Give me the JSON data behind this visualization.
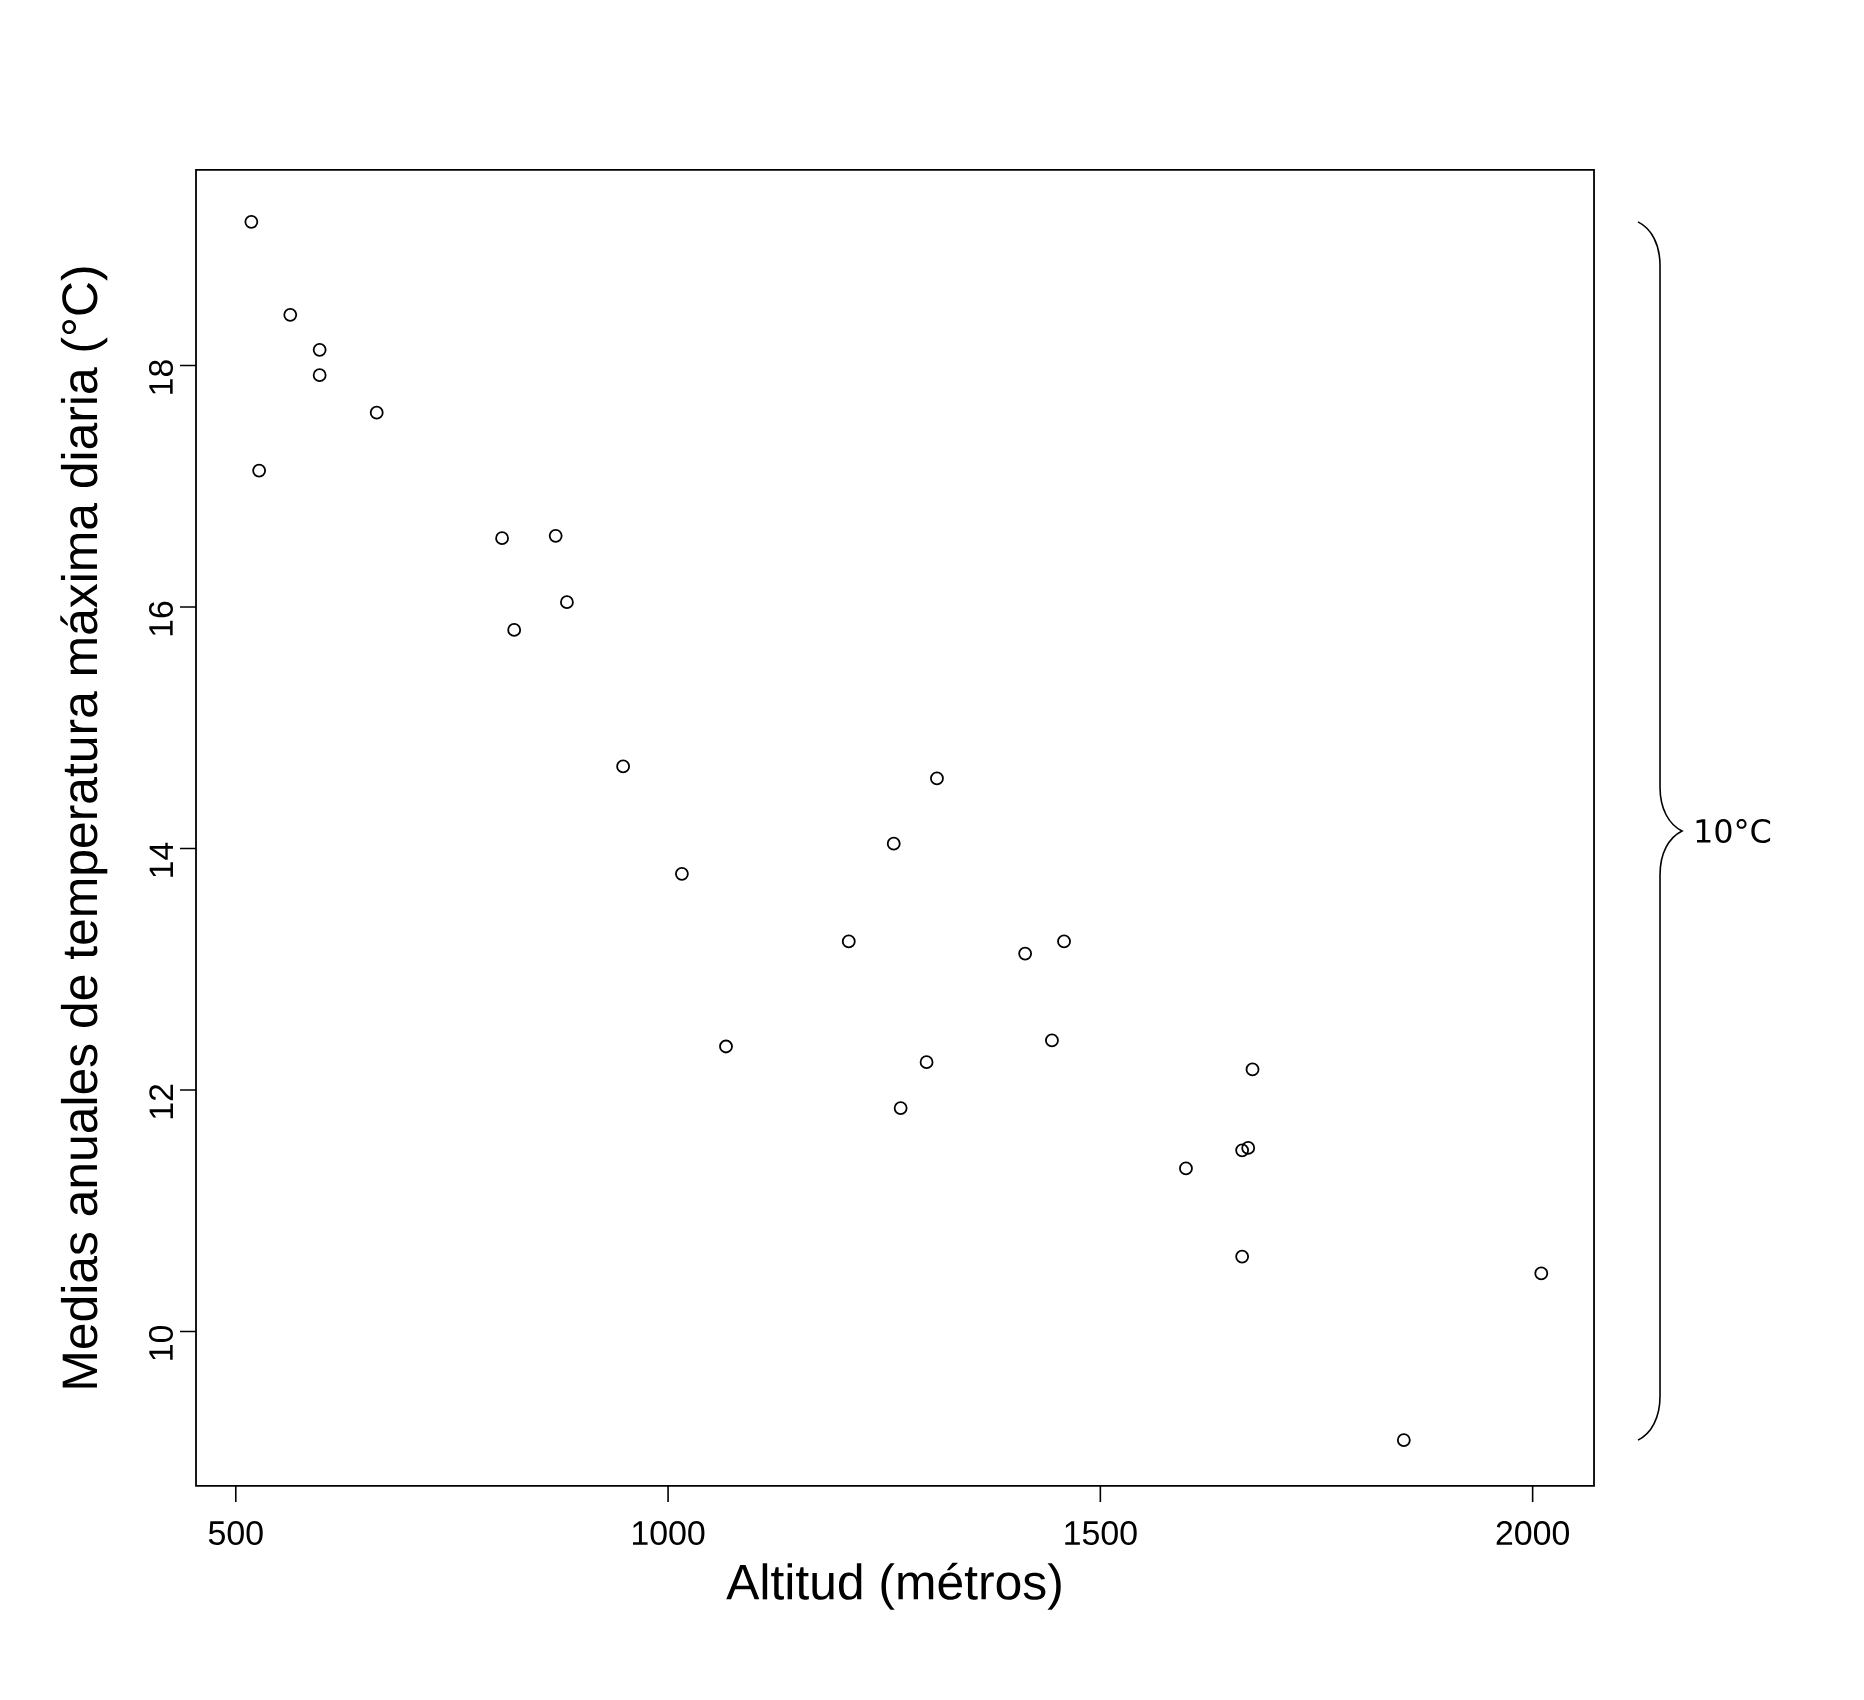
{
  "chart_data": {
    "type": "scatter",
    "xlabel": "Altitud (métros)",
    "ylabel": "Medias anuales de temperatura máxima diaria (°C)",
    "annotations": [
      "10°C"
    ],
    "x": [
      518,
      527,
      563,
      597,
      597,
      663,
      808,
      822,
      870,
      883,
      948,
      1016,
      1067,
      1209,
      1261,
      1269,
      1299,
      1311,
      1413,
      1444,
      1458,
      1599,
      1664,
      1664,
      1671,
      1676,
      1851,
      2010
    ],
    "values": [
      19.19,
      17.13,
      18.42,
      18.13,
      17.92,
      17.61,
      16.57,
      15.81,
      16.59,
      16.04,
      14.68,
      13.79,
      12.36,
      13.23,
      14.04,
      11.85,
      12.23,
      14.58,
      13.13,
      12.41,
      13.23,
      11.35,
      11.5,
      10.62,
      11.52,
      12.17,
      9.1,
      10.48
    ],
    "color": "#000000",
    "marker": "circle",
    "xlim": [
      454,
      2071
    ],
    "ylim": [
      8.72,
      19.62
    ],
    "xticks": [
      500,
      1000,
      1500,
      2000
    ],
    "yticks": [
      10,
      12,
      14,
      16,
      18
    ]
  }
}
